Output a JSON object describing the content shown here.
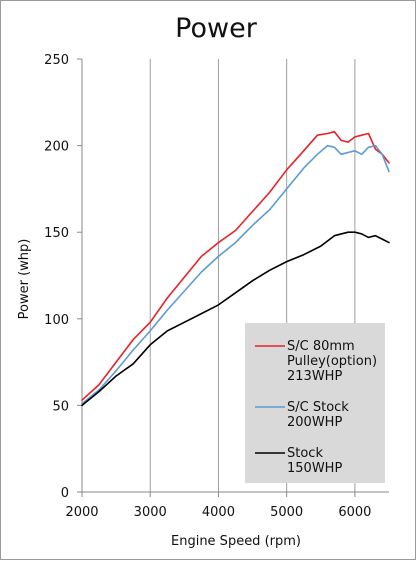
{
  "chart_data": {
    "type": "line",
    "title": "Power",
    "xlabel": "Engine Speed (rpm)",
    "ylabel": "Power (whp)",
    "xlim": [
      2000,
      6500
    ],
    "ylim": [
      0,
      250
    ],
    "x_ticks": [
      "2000",
      "3000",
      "4000",
      "5000",
      "6000"
    ],
    "y_ticks": [
      "0",
      "50",
      "100",
      "150",
      "200",
      "250"
    ],
    "grid": "vertical",
    "legend_position": "bottom-right",
    "series": [
      {
        "name": "S/C 80mm Pulley(option) 213WHP",
        "legend_lines": [
          "S/C 80mm",
          "Pulley(option)",
          "213WHP"
        ],
        "color": "#e8202a",
        "points": [
          [
            2000,
            53
          ],
          [
            2250,
            62
          ],
          [
            2500,
            75
          ],
          [
            2750,
            88
          ],
          [
            3000,
            98
          ],
          [
            3250,
            112
          ],
          [
            3500,
            124
          ],
          [
            3750,
            136
          ],
          [
            4000,
            144
          ],
          [
            4250,
            151
          ],
          [
            4500,
            162
          ],
          [
            4750,
            173
          ],
          [
            5000,
            186
          ],
          [
            5250,
            197
          ],
          [
            5450,
            206
          ],
          [
            5600,
            207
          ],
          [
            5700,
            208
          ],
          [
            5800,
            203
          ],
          [
            5900,
            202
          ],
          [
            6000,
            205
          ],
          [
            6100,
            206
          ],
          [
            6200,
            207
          ],
          [
            6300,
            198
          ],
          [
            6400,
            195
          ],
          [
            6500,
            190
          ]
        ]
      },
      {
        "name": "S/C Stock 200WHP",
        "legend_lines": [
          "S/C Stock",
          "200WHP"
        ],
        "color": "#5b9bd5",
        "points": [
          [
            2000,
            51
          ],
          [
            2250,
            59
          ],
          [
            2500,
            70
          ],
          [
            2750,
            82
          ],
          [
            3000,
            93
          ],
          [
            3250,
            105
          ],
          [
            3500,
            116
          ],
          [
            3750,
            127
          ],
          [
            4000,
            136
          ],
          [
            4250,
            144
          ],
          [
            4500,
            154
          ],
          [
            4750,
            163
          ],
          [
            5000,
            175
          ],
          [
            5250,
            187
          ],
          [
            5450,
            195
          ],
          [
            5600,
            200
          ],
          [
            5700,
            199
          ],
          [
            5800,
            195
          ],
          [
            5900,
            196
          ],
          [
            6000,
            197
          ],
          [
            6100,
            195
          ],
          [
            6200,
            199
          ],
          [
            6300,
            200
          ],
          [
            6400,
            195
          ],
          [
            6500,
            185
          ]
        ]
      },
      {
        "name": "Stock 150WHP",
        "legend_lines": [
          "Stock",
          "150WHP"
        ],
        "color": "#000000",
        "points": [
          [
            2000,
            50
          ],
          [
            2250,
            58
          ],
          [
            2500,
            67
          ],
          [
            2750,
            74
          ],
          [
            3000,
            85
          ],
          [
            3250,
            93
          ],
          [
            3500,
            98
          ],
          [
            3750,
            103
          ],
          [
            4000,
            108
          ],
          [
            4250,
            115
          ],
          [
            4500,
            122
          ],
          [
            4750,
            128
          ],
          [
            5000,
            133
          ],
          [
            5250,
            137
          ],
          [
            5500,
            142
          ],
          [
            5700,
            148
          ],
          [
            5900,
            150
          ],
          [
            6000,
            150
          ],
          [
            6100,
            149
          ],
          [
            6200,
            147
          ],
          [
            6300,
            148
          ],
          [
            6400,
            146
          ],
          [
            6500,
            144
          ]
        ]
      }
    ]
  },
  "colors": {
    "grid": "#9e9e9e",
    "axis": "#888888",
    "legend_background": "#d9d9d9"
  }
}
